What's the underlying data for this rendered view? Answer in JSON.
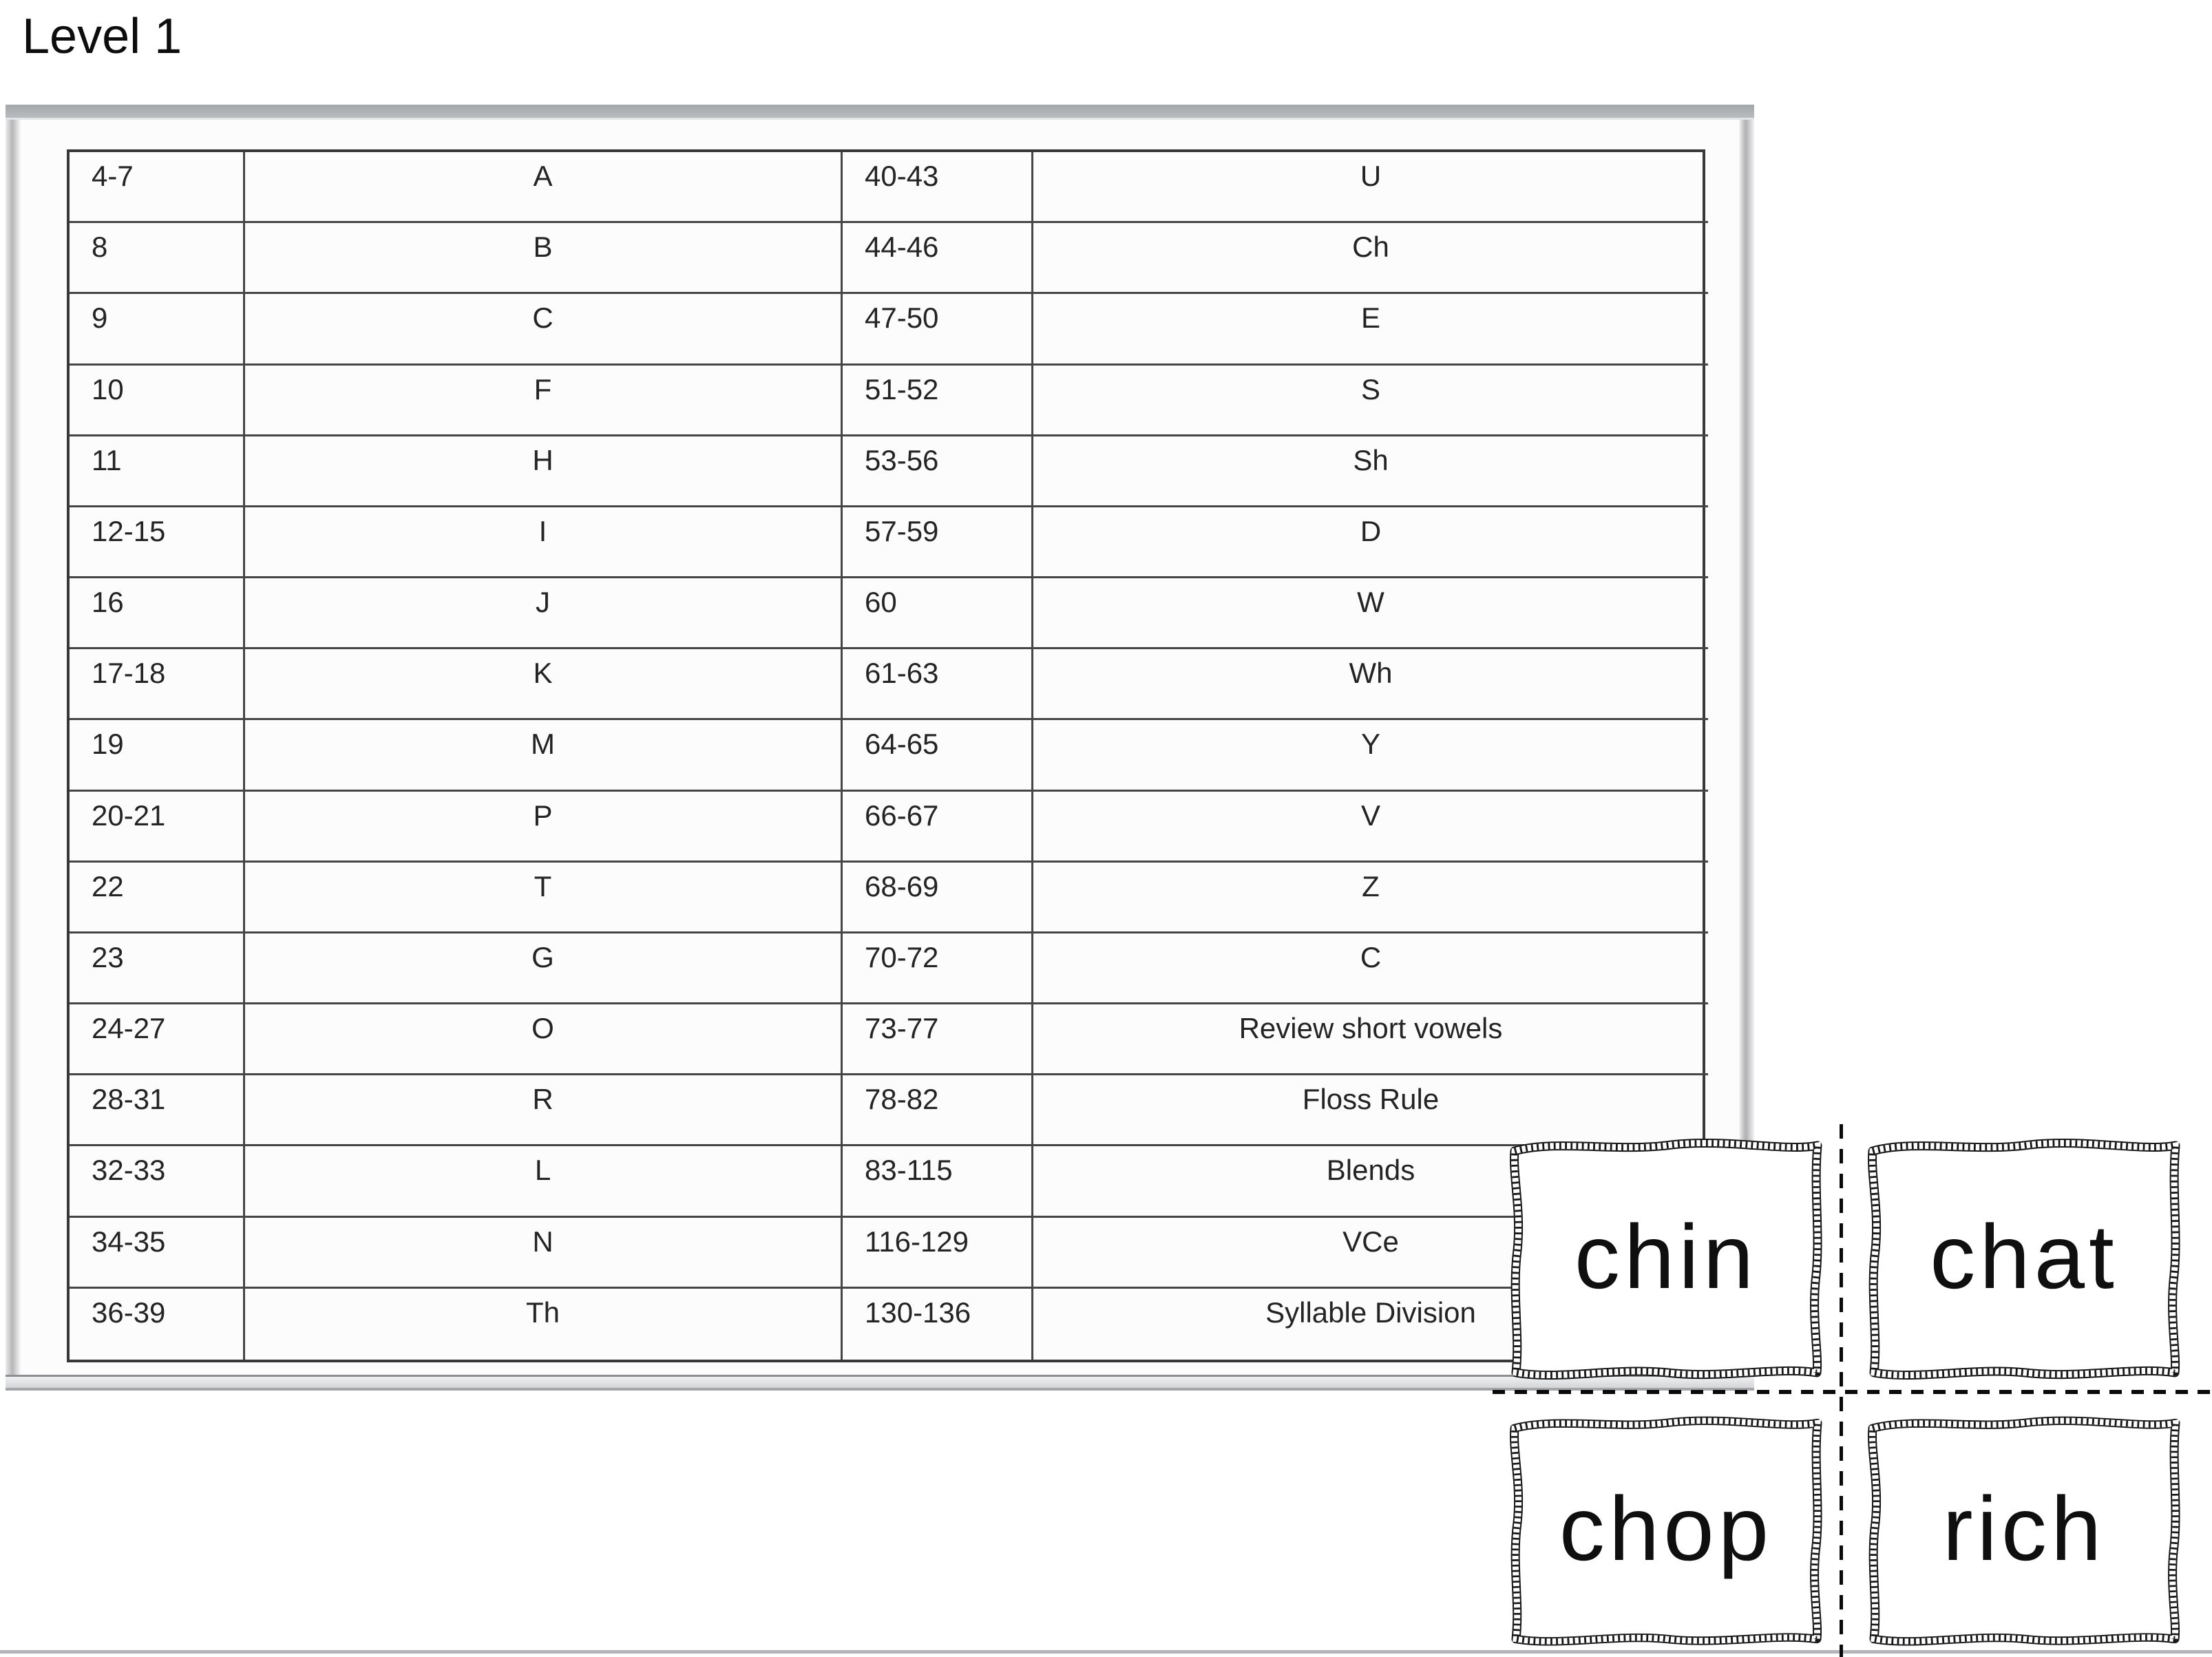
{
  "header": {
    "title": "Level 1"
  },
  "table": {
    "column_semantics": [
      "lesson-range",
      "skill",
      "lesson-range",
      "skill"
    ],
    "rows": [
      [
        "4-7",
        "A",
        "40-43",
        "U"
      ],
      [
        "8",
        "B",
        "44-46",
        "Ch"
      ],
      [
        "9",
        "C",
        "47-50",
        "E"
      ],
      [
        "10",
        "F",
        "51-52",
        "S"
      ],
      [
        "11",
        "H",
        "53-56",
        "Sh"
      ],
      [
        "12-15",
        "I",
        "57-59",
        "D"
      ],
      [
        "16",
        "J",
        "60",
        "W"
      ],
      [
        "17-18",
        "K",
        "61-63",
        "Wh"
      ],
      [
        "19",
        "M",
        "64-65",
        "Y"
      ],
      [
        "20-21",
        "P",
        "66-67",
        "V"
      ],
      [
        "22",
        "T",
        "68-69",
        "Z"
      ],
      [
        "23",
        "G",
        "70-72",
        "C"
      ],
      [
        "24-27",
        "O",
        "73-77",
        "Review short vowels"
      ],
      [
        "28-31",
        "R",
        "78-82",
        "Floss Rule"
      ],
      [
        "32-33",
        "L",
        "83-115",
        "Blends"
      ],
      [
        "34-35",
        "N",
        "116-129",
        "VCe"
      ],
      [
        "36-39",
        "Th",
        "130-136",
        "Syllable Division"
      ]
    ]
  },
  "cards": [
    {
      "word": "chin"
    },
    {
      "word": "chat"
    },
    {
      "word": "chop"
    },
    {
      "word": "rich"
    }
  ],
  "colors": {
    "page_edge_gray": "#aeb0b2",
    "page_top_bar": "#aaadaf",
    "table_border": "#454545",
    "table_text": "#242424",
    "card_ink": "#0f0f0f",
    "cut_line": "#0a0a0a",
    "page_break_line": "#b3b5b8"
  }
}
